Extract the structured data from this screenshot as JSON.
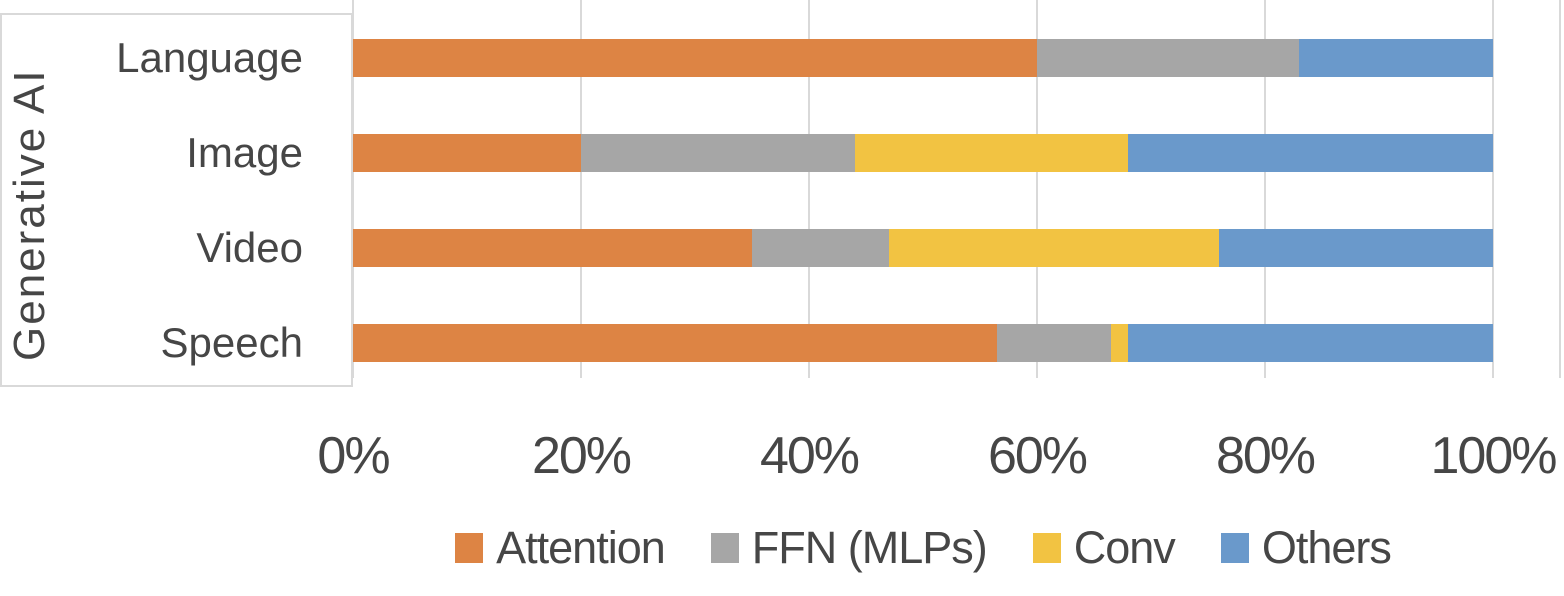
{
  "chart_data": {
    "type": "bar",
    "orientation": "horizontal",
    "stacked": true,
    "title": "",
    "xlabel": "",
    "ylabel": "Generative AI",
    "categories": [
      "Language",
      "Image",
      "Video",
      "Speech"
    ],
    "series": [
      {
        "name": "Attention",
        "color": "#dd8444",
        "values": [
          60,
          20,
          35,
          56.5
        ]
      },
      {
        "name": "FFN (MLPs)",
        "color": "#a6a6a6",
        "values": [
          23,
          24,
          12,
          10
        ]
      },
      {
        "name": "Conv",
        "color": "#f2c342",
        "values": [
          0,
          24,
          29,
          1.5
        ]
      },
      {
        "name": "Others",
        "color": "#6a99cb",
        "values": [
          17,
          32,
          24,
          32
        ]
      }
    ],
    "x_ticks": [
      "0%",
      "20%",
      "40%",
      "60%",
      "80%",
      "100%"
    ],
    "xlim": [
      0,
      100
    ],
    "grid": true,
    "legend_position": "bottom"
  },
  "colors": {
    "gridline": "#d9d9d9",
    "axis_box_border": "#d9d9d9",
    "text": "#464646",
    "background": "#ffffff"
  }
}
